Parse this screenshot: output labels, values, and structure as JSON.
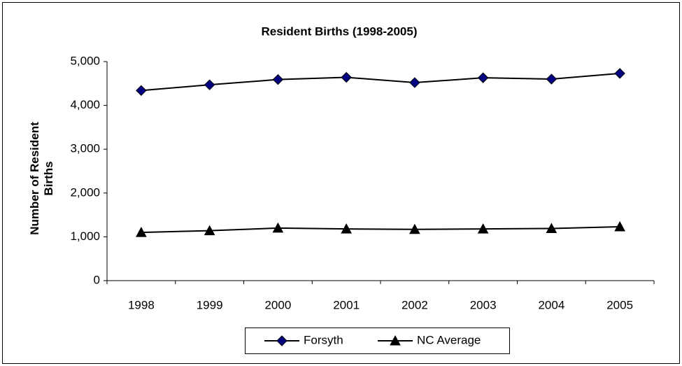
{
  "chart_data": {
    "type": "line",
    "title": "Resident Births (1998-2005)",
    "y_label": "Number of  Resident Births",
    "categories": [
      "1998",
      "1999",
      "2000",
      "2001",
      "2002",
      "2003",
      "2004",
      "2005"
    ],
    "series": [
      {
        "name": "Forsyth",
        "color": "#000080",
        "marker": "diamond",
        "values": [
          4340,
          4470,
          4590,
          4640,
          4520,
          4630,
          4600,
          4730
        ]
      },
      {
        "name": "NC Average",
        "color": "#000000",
        "marker": "triangle",
        "values": [
          1100,
          1140,
          1200,
          1180,
          1170,
          1180,
          1190,
          1230
        ]
      }
    ],
    "ylim": [
      0,
      5000
    ],
    "yticks": [
      0,
      {
        "value": 1000,
        "label": "1,000"
      },
      {
        "value": 2000,
        "label": "2,000"
      },
      {
        "value": 3000,
        "label": "3,000"
      },
      {
        "value": 4000,
        "label": "4,000"
      },
      {
        "value": 5000,
        "label": "5,000"
      }
    ],
    "grid": false,
    "legend": "bottom"
  }
}
